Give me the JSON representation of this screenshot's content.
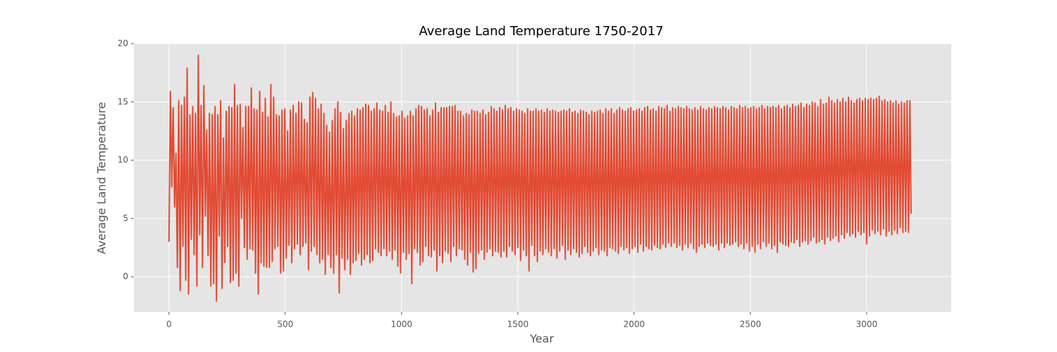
{
  "chart_data": {
    "type": "line",
    "title": "Average Land Temperature 1750-2017",
    "xlabel": "Year",
    "ylabel": "Average Land Temperature",
    "color": "#E24A33",
    "background": "#E5E5E5",
    "grid": true,
    "xlim": [
      -151,
      3364
    ],
    "ylim": [
      -3.02,
      20
    ],
    "xticks": [
      0,
      500,
      1000,
      1500,
      2000,
      2500,
      3000
    ],
    "yticks": [
      0,
      5,
      10,
      15,
      20
    ],
    "x": [
      0,
      6,
      12,
      18,
      24,
      30,
      36,
      42,
      48,
      54,
      60,
      66,
      72,
      78,
      84,
      90,
      96,
      102,
      108,
      114,
      120,
      126,
      132,
      138,
      144,
      150,
      156,
      162,
      168,
      174,
      180,
      186,
      192,
      198,
      204,
      210,
      216,
      222,
      228,
      234,
      240,
      246,
      252,
      258,
      264,
      270,
      276,
      282,
      288,
      294,
      300,
      306,
      312,
      318,
      324,
      330,
      336,
      342,
      348,
      354,
      360,
      366,
      372,
      378,
      384,
      390,
      396,
      402,
      408,
      414,
      420,
      426,
      432,
      438,
      444,
      450,
      456,
      462,
      468,
      474,
      480,
      486,
      492,
      498,
      504,
      510,
      516,
      522,
      528,
      534,
      540,
      546,
      552,
      558,
      564,
      570,
      576,
      582,
      588,
      594,
      600,
      606,
      612,
      618,
      624,
      630,
      636,
      642,
      648,
      654,
      660,
      666,
      672,
      678,
      684,
      690,
      696,
      702,
      708,
      714,
      720,
      726,
      732,
      738,
      744,
      750,
      756,
      762,
      768,
      774,
      780,
      786,
      792,
      798,
      804,
      810,
      816,
      822,
      828,
      834,
      840,
      846,
      852,
      858,
      864,
      870,
      876,
      882,
      888,
      894,
      900,
      906,
      912,
      918,
      924,
      930,
      936,
      942,
      948,
      954,
      960,
      966,
      972,
      978,
      984,
      990,
      996,
      1002,
      1008,
      1014,
      1020,
      1026,
      1032,
      1038,
      1044,
      1050,
      1056,
      1062,
      1068,
      1074,
      1080,
      1086,
      1092,
      1098,
      1104,
      1110,
      1116,
      1122,
      1128,
      1134,
      1140,
      1146,
      1152,
      1158,
      1164,
      1170,
      1176,
      1182,
      1188,
      1194,
      1200,
      1206,
      1212,
      1218,
      1224,
      1230,
      1236,
      1242,
      1248,
      1254,
      1260,
      1266,
      1272,
      1278,
      1284,
      1290,
      1296,
      1302,
      1308,
      1314,
      1320,
      1326,
      1332,
      1338,
      1344,
      1350,
      1356,
      1362,
      1368,
      1374,
      1380,
      1386,
      1392,
      1398,
      1404,
      1410,
      1416,
      1422,
      1428,
      1434,
      1440,
      1446,
      1452,
      1458,
      1464,
      1470,
      1476,
      1482,
      1488,
      1494,
      1500,
      1506,
      1512,
      1518,
      1524,
      1530,
      1536,
      1542,
      1548,
      1554,
      1560,
      1566,
      1572,
      1578,
      1584,
      1590,
      1596,
      1602,
      1608,
      1614,
      1620,
      1626,
      1632,
      1638,
      1644,
      1650,
      1656,
      1662,
      1668,
      1674,
      1680,
      1686,
      1692,
      1698,
      1704,
      1710,
      1716,
      1722,
      1728,
      1734,
      1740,
      1746,
      1752,
      1758,
      1764,
      1770,
      1776,
      1782,
      1788,
      1794,
      1800,
      1806,
      1812,
      1818,
      1824,
      1830,
      1836,
      1842,
      1848,
      1854,
      1860,
      1866,
      1872,
      1878,
      1884,
      1890,
      1896,
      1902,
      1908,
      1914,
      1920,
      1926,
      1932,
      1938,
      1944,
      1950,
      1956,
      1962,
      1968,
      1974,
      1980,
      1986,
      1992,
      1998,
      2004,
      2010,
      2016,
      2022,
      2028,
      2034,
      2040,
      2046,
      2052,
      2058,
      2064,
      2070,
      2076,
      2082,
      2088,
      2094,
      2100,
      2106,
      2112,
      2118,
      2124,
      2130,
      2136,
      2142,
      2148,
      2154,
      2160,
      2166,
      2172,
      2178,
      2184,
      2190,
      2196,
      2202,
      2208,
      2214,
      2220,
      2226,
      2232,
      2238,
      2244,
      2250,
      2256,
      2262,
      2268,
      2274,
      2280,
      2286,
      2292,
      2298,
      2304,
      2310,
      2316,
      2322,
      2328,
      2334,
      2340,
      2346,
      2352,
      2358,
      2364,
      2370,
      2376,
      2382,
      2388,
      2394,
      2400,
      2406,
      2412,
      2418,
      2424,
      2430,
      2436,
      2442,
      2448,
      2454,
      2460,
      2466,
      2472,
      2478,
      2484,
      2490,
      2496,
      2502,
      2508,
      2514,
      2520,
      2526,
      2532,
      2538,
      2544,
      2550,
      2556,
      2562,
      2568,
      2574,
      2580,
      2586,
      2592,
      2598,
      2604,
      2610,
      2616,
      2622,
      2628,
      2634,
      2640,
      2646,
      2652,
      2658,
      2664,
      2670,
      2676,
      2682,
      2688,
      2694,
      2700,
      2706,
      2712,
      2718,
      2724,
      2730,
      2736,
      2742,
      2748,
      2754,
      2760,
      2766,
      2772,
      2778,
      2784,
      2790,
      2796,
      2802,
      2808,
      2814,
      2820,
      2826,
      2832,
      2838,
      2844,
      2850,
      2856,
      2862,
      2868,
      2874,
      2880,
      2886,
      2892,
      2898,
      2904,
      2910,
      2916,
      2922,
      2928,
      2934,
      2940,
      2946,
      2952,
      2958,
      2964,
      2970,
      2976,
      2982,
      2988,
      2994,
      3000,
      3006,
      3012,
      3018,
      3024,
      3030,
      3036,
      3042,
      3048,
      3054,
      3060,
      3066,
      3072,
      3078,
      3084,
      3090,
      3096,
      3102,
      3108,
      3114,
      3120,
      3126,
      3132,
      3138,
      3144,
      3150,
      3156,
      3162,
      3168,
      3174,
      3180,
      3186,
      3191
    ],
    "values": [
      3,
      15.9,
      7.7,
      14.5,
      6,
      10.6,
      0.8,
      15.1,
      -1.2,
      14.7,
      2.6,
      15.4,
      -0.3,
      17.9,
      -1.5,
      13.9,
      3.2,
      14.6,
      1.9,
      14,
      -0.8,
      19,
      3.6,
      14.7,
      0.8,
      16.4,
      5.2,
      12.6,
      1.8,
      14,
      -0.8,
      13.9,
      -0.6,
      14.6,
      -2.1,
      13.9,
      3.5,
      15.1,
      -1,
      11.9,
      1.2,
      14.2,
      2.6,
      14.6,
      -0.5,
      14.5,
      -0.3,
      16.5,
      0.3,
      14.7,
      -0.8,
      14.8,
      5,
      12.8,
      2.5,
      14.6,
      1.5,
      14.6,
      2.4,
      16.2,
      2.3,
      14.4,
      0.3,
      14.3,
      -1.5,
      15.9,
      1.2,
      14.1,
      0.9,
      15.3,
      0.8,
      13.7,
      0.8,
      16.5,
      1.3,
      15.4,
      2.4,
      13.9,
      2.6,
      13.8,
      0.3,
      14.3,
      0.5,
      14.4,
      1.6,
      12.5,
      2.7,
      14.3,
      1.2,
      14.7,
      2.4,
      14,
      2.8,
      15,
      1.9,
      14.9,
      2.6,
      13.5,
      2.9,
      13.2,
      0.6,
      15.4,
      2.2,
      15.8,
      2.6,
      15.3,
      1.9,
      14.4,
      1.2,
      14.8,
      1.5,
      14,
      0.2,
      13,
      1.9,
      12.4,
      0.8,
      13.4,
      0.3,
      14.4,
      1.9,
      15,
      -1.4,
      14.1,
      1.6,
      12.7,
      0.6,
      13.4,
      1.5,
      14,
      0.2,
      14.2,
      1.2,
      13.8,
      1.4,
      14.4,
      2,
      14.3,
      1,
      14.5,
      1.5,
      14.8,
      1.9,
      14.7,
      1.2,
      14.2,
      1.4,
      14.4,
      2.4,
      14.9,
      2.1,
      14.3,
      1.8,
      14.2,
      2.4,
      14.7,
      1.8,
      14.1,
      2.2,
      15,
      1.5,
      14,
      2.3,
      13.7,
      0.9,
      13.8,
      0.3,
      14.2,
      2.1,
      13.6,
      1.5,
      13.8,
      2,
      14.2,
      -0.6,
      13.8,
      2.4,
      14.4,
      2.1,
      14.7,
      1,
      14.6,
      1.3,
      14.3,
      2.6,
      14.4,
      1.8,
      13.8,
      1.7,
      14.3,
      2.3,
      14.9,
      0.5,
      14.1,
      1.8,
      14.5,
      1.2,
      14.5,
      2.2,
      14.5,
      2,
      14.6,
      1.3,
      14.6,
      2.6,
      14.7,
      1.8,
      14.2,
      2.4,
      14.2,
      2.3,
      13.8,
      1.5,
      14,
      1,
      13.9,
      2.1,
      14.3,
      0.4,
      14.2,
      0.7,
      14.2,
      2,
      14,
      2.3,
      14.3,
      1.5,
      13.9,
      2.1,
      14.1,
      2.4,
      14.6,
      1.8,
      14.4,
      2.2,
      14.2,
      2.1,
      14.5,
      1.7,
      14.3,
      2.2,
      14.7,
      1.7,
      14.4,
      2.6,
      14.5,
      2.2,
      14.2,
      1.9,
      14.4,
      2.5,
      14.3,
      1.4,
      14.2,
      2.3,
      14,
      1.8,
      14.4,
      0.5,
      14.2,
      2.7,
      14.2,
      1.8,
      14.4,
      1.3,
      14.2,
      2.2,
      14.3,
      1.9,
      14.1,
      2.4,
      14.4,
      2.1,
      14.2,
      1.8,
      14.3,
      2.4,
      14.2,
      1.6,
      14.1,
      2.2,
      14.2,
      2.7,
      14.3,
      1.5,
      14.2,
      2.3,
      14.4,
      1.9,
      14.1,
      2.4,
      14.2,
      2.1,
      14,
      1.7,
      14.3,
      2,
      14.2,
      2.6,
      14.1,
      2.1,
      13.9,
      1.8,
      14.2,
      2.2,
      14.1,
      2.5,
      14.2,
      1.9,
      14.3,
      2.3,
      14,
      2.2,
      14.4,
      1.8,
      14.2,
      2.5,
      14.4,
      2.4,
      14,
      2.2,
      14.3,
      2,
      14.5,
      2.6,
      14.3,
      2.3,
      14.2,
      2.5,
      14.4,
      2,
      14.5,
      2.4,
      14.2,
      2.6,
      14.3,
      2.1,
      14.4,
      2.8,
      14.2,
      2.2,
      14.5,
      2.6,
      14.6,
      2.4,
      14.3,
      2.3,
      14.4,
      2.7,
      14.2,
      2.5,
      14.6,
      2.4,
      14.5,
      2.8,
      14.4,
      2.5,
      14.7,
      2.9,
      14.2,
      2.6,
      14.5,
      2.9,
      14.4,
      2.5,
      14.6,
      2.7,
      14.5,
      2.3,
      14.4,
      2.8,
      14.6,
      2.5,
      14.4,
      2.9,
      14.3,
      2.4,
      14.5,
      2.1,
      14.3,
      2.6,
      14.6,
      2.8,
      14.4,
      2.5,
      14.3,
      2.9,
      14.5,
      2.7,
      14.4,
      2.6,
      14.6,
      2.8,
      14.5,
      2.3,
      14.4,
      2.9,
      14.6,
      2.5,
      14.5,
      2.9,
      14.3,
      2.7,
      14.6,
      2.8,
      14.5,
      3,
      14.4,
      2.6,
      14.7,
      2.8,
      14.5,
      2.4,
      14.6,
      2.9,
      14.4,
      2.2,
      14.5,
      2.6,
      14.6,
      2.1,
      14.4,
      2.8,
      14.5,
      2.4,
      14.7,
      3,
      14.4,
      2.6,
      14.6,
      2.9,
      14.5,
      2.4,
      14.6,
      2.7,
      14.5,
      2.1,
      14.7,
      3,
      14.4,
      2.8,
      14.6,
      2.7,
      14.7,
      2.6,
      14.5,
      3,
      14.8,
      2.9,
      14.6,
      3.2,
      14.7,
      2.6,
      14.9,
      3,
      14.5,
      3.1,
      14.8,
      2.8,
      14.7,
      3.1,
      15,
      3.4,
      14.9,
      2.9,
      14.6,
      3,
      15.2,
      3.2,
      14.8,
      2.8,
      14.9,
      3.4,
      15.4,
      3.1,
      15.1,
      3.3,
      14.9,
      3.5,
      15.2,
      3,
      15,
      3.6,
      15.3,
      3.3,
      15,
      3.8,
      15.4,
      3.5,
      15.1,
      3.7,
      14.9,
      3.4,
      15.2,
      3.9,
      15.3,
      3.6,
      15.1,
      3.8,
      15.3,
      2.8,
      15.2,
      3.5,
      15.3,
      4,
      15.2,
      3.7,
      15.3,
      3.9,
      15.5,
      3.6,
      15.1,
      4.1,
      15.2,
      3.5,
      15,
      3.9,
      15.1,
      3.6,
      14.9,
      4,
      15.1,
      3.7,
      14.8,
      4.2,
      15,
      3.8,
      14.9,
      3.9,
      15.1,
      3.8,
      15.1,
      5.4
    ]
  }
}
